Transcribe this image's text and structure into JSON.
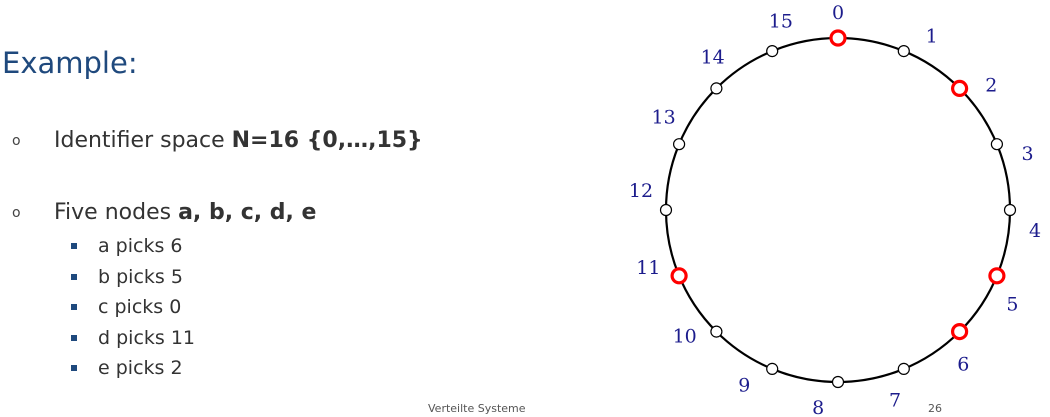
{
  "slide": {
    "title": "Example:",
    "bullets": [
      {
        "marker": "o",
        "text": "Identifier space ",
        "bold": "N=16 {0,…,15}"
      },
      {
        "marker": "o",
        "text": "Five nodes ",
        "bold": "a, b, c, d, e"
      }
    ],
    "sub_items": [
      "a picks 6",
      "b picks 5",
      "c picks 0",
      "d picks 11",
      "e picks 2"
    ],
    "footer": "Verteilte Systeme",
    "page_number": "26"
  },
  "ring": {
    "identifiers": [
      "0",
      "1",
      "2",
      "3",
      "4",
      "5",
      "6",
      "7",
      "8",
      "9",
      "10",
      "11",
      "12",
      "13",
      "14",
      "15"
    ],
    "selected": [
      0,
      2,
      5,
      6,
      11
    ],
    "colors": {
      "selected": "#ff0000",
      "label": "#1c1c8c",
      "circle": "#000000"
    }
  }
}
